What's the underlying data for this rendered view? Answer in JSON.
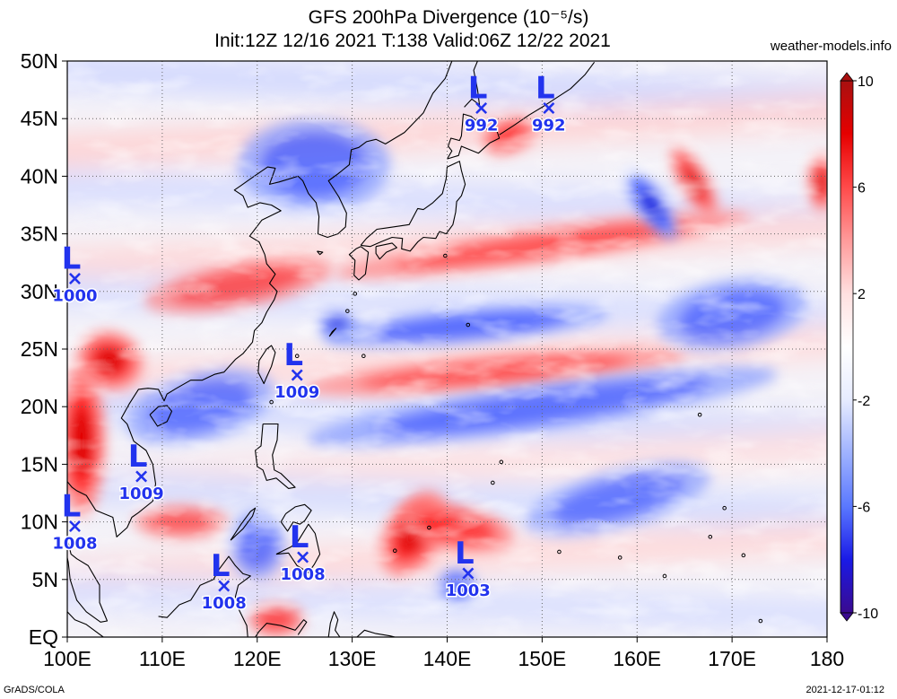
{
  "header": {
    "title_line1": "GFS 200hPa Divergence (10⁻⁵/s)",
    "title_line2": "Init:12Z 12/16 2021 T:138 Valid:06Z 12/22 2021",
    "brand": "weather-models.info"
  },
  "footer": {
    "left": "GrADS/COLA",
    "right": "2021-12-17-01:12"
  },
  "map": {
    "lon_range": [
      100,
      180
    ],
    "lat_range": [
      0,
      50
    ],
    "lon_ticks": [
      {
        "value": 100,
        "label": "100E"
      },
      {
        "value": 110,
        "label": "110E"
      },
      {
        "value": 120,
        "label": "120E"
      },
      {
        "value": 130,
        "label": "130E"
      },
      {
        "value": 140,
        "label": "140E"
      },
      {
        "value": 150,
        "label": "150E"
      },
      {
        "value": 160,
        "label": "160E"
      },
      {
        "value": 170,
        "label": "170E"
      },
      {
        "value": 180,
        "label": "180"
      }
    ],
    "lat_ticks": [
      {
        "value": 0,
        "label": "EQ"
      },
      {
        "value": 5,
        "label": "5N"
      },
      {
        "value": 10,
        "label": "10N"
      },
      {
        "value": 15,
        "label": "15N"
      },
      {
        "value": 20,
        "label": "20N"
      },
      {
        "value": 25,
        "label": "25N"
      },
      {
        "value": 30,
        "label": "30N"
      },
      {
        "value": 35,
        "label": "35N"
      },
      {
        "value": 40,
        "label": "40N"
      },
      {
        "value": 45,
        "label": "45N"
      },
      {
        "value": 50,
        "label": "50N"
      }
    ],
    "grid": true
  },
  "colorbar": {
    "range": [
      -10,
      10
    ],
    "ticks": [
      {
        "value": 10,
        "label": "10"
      },
      {
        "value": 6,
        "label": "6"
      },
      {
        "value": 2,
        "label": "2"
      },
      {
        "value": -2,
        "label": "-2"
      },
      {
        "value": -6,
        "label": "-6"
      },
      {
        "value": -10,
        "label": "-10"
      }
    ],
    "colors": [
      "#3a0a8f",
      "#1a1ae6",
      "#5a78ff",
      "#9fb2ff",
      "#e6ebff",
      "#ffffff",
      "#ffe0e0",
      "#ff9a9a",
      "#ff4a4a",
      "#e60000",
      "#a81010"
    ]
  },
  "lows": [
    {
      "symbol": "L",
      "pressure": "992",
      "lon": 143.6,
      "lat": 46.0
    },
    {
      "symbol": "L",
      "pressure": "992",
      "lon": 150.7,
      "lat": 46.0
    },
    {
      "symbol": "L",
      "pressure": "1000",
      "lon": 100.8,
      "lat": 31.2
    },
    {
      "symbol": "L",
      "pressure": "1009",
      "lon": 124.2,
      "lat": 22.8
    },
    {
      "symbol": "L",
      "pressure": "1009",
      "lon": 107.8,
      "lat": 14.0
    },
    {
      "symbol": "L",
      "pressure": "1008",
      "lon": 100.8,
      "lat": 9.7
    },
    {
      "symbol": "L",
      "pressure": "1008",
      "lon": 124.8,
      "lat": 7.0
    },
    {
      "symbol": "L",
      "pressure": "1008",
      "lon": 116.5,
      "lat": 4.5
    },
    {
      "symbol": "L",
      "pressure": "1003",
      "lon": 142.2,
      "lat": 5.6
    }
  ],
  "field_features": [
    {
      "type": "positive",
      "strength": 1.0,
      "lon": 101.5,
      "lat": 17.0,
      "rlon": 2.5,
      "rlat": 6.5,
      "angle": 0
    },
    {
      "type": "positive",
      "strength": 0.9,
      "lon": 104.5,
      "lat": 24.0,
      "rlon": 3.5,
      "rlat": 2.5,
      "angle": -20
    },
    {
      "type": "positive",
      "strength": 0.95,
      "lon": 136.5,
      "lat": 9.0,
      "rlon": 3.0,
      "rlat": 4.0,
      "angle": -30
    },
    {
      "type": "positive",
      "strength": 0.7,
      "lon": 141.0,
      "lat": 9.5,
      "rlon": 6.0,
      "rlat": 2.0,
      "angle": -10
    },
    {
      "type": "positive",
      "strength": 0.8,
      "lon": 166.0,
      "lat": 39.5,
      "rlon": 1.5,
      "rlat": 3.5,
      "angle": 30
    },
    {
      "type": "positive",
      "strength": 0.85,
      "lon": 179.5,
      "lat": 39.5,
      "rlon": 1.5,
      "rlat": 2.5,
      "angle": 0
    },
    {
      "type": "positive",
      "strength": 0.65,
      "lon": 146.5,
      "lat": 43.5,
      "rlon": 3.0,
      "rlat": 1.5,
      "angle": 20
    },
    {
      "type": "positive",
      "strength": 0.6,
      "lon": 122.0,
      "lat": 1.5,
      "rlon": 3.0,
      "rlat": 1.5,
      "angle": 0
    },
    {
      "type": "positive",
      "strength": 0.45,
      "lon": 145.0,
      "lat": 23.0,
      "rlon": 20.0,
      "rlat": 1.5,
      "angle": 5
    },
    {
      "type": "positive",
      "strength": 0.45,
      "lon": 150.0,
      "lat": 34.0,
      "rlon": 22.0,
      "rlat": 1.5,
      "angle": 8
    },
    {
      "type": "positive",
      "strength": 0.45,
      "lon": 118.0,
      "lat": 30.5,
      "rlon": 10.0,
      "rlat": 2.0,
      "angle": 10
    },
    {
      "type": "positive",
      "strength": 0.4,
      "lon": 112.0,
      "lat": 10.0,
      "rlon": 5.0,
      "rlat": 1.5,
      "angle": 0
    },
    {
      "type": "negative",
      "strength": 1.0,
      "lon": 161.5,
      "lat": 37.5,
      "rlon": 1.5,
      "rlat": 3.5,
      "angle": 35
    },
    {
      "type": "negative",
      "strength": 0.8,
      "lon": 128.5,
      "lat": 27.0,
      "rlon": 2.0,
      "rlat": 1.2,
      "angle": 0
    },
    {
      "type": "negative",
      "strength": 0.6,
      "lon": 142.0,
      "lat": 27.0,
      "rlon": 15.0,
      "rlat": 1.5,
      "angle": 5
    },
    {
      "type": "negative",
      "strength": 0.5,
      "lon": 150.0,
      "lat": 20.0,
      "rlon": 25.0,
      "rlat": 2.0,
      "angle": 8
    },
    {
      "type": "negative",
      "strength": 0.5,
      "lon": 126.0,
      "lat": 41.0,
      "rlon": 8.0,
      "rlat": 4.0,
      "angle": 0
    },
    {
      "type": "negative",
      "strength": 0.55,
      "lon": 141.0,
      "lat": 4.5,
      "rlon": 2.0,
      "rlat": 1.5,
      "angle": 0
    },
    {
      "type": "negative",
      "strength": 0.45,
      "lon": 170.0,
      "lat": 28.0,
      "rlon": 8.0,
      "rlat": 3.0,
      "angle": 10
    },
    {
      "type": "negative",
      "strength": 0.4,
      "lon": 114.0,
      "lat": 20.0,
      "rlon": 8.0,
      "rlat": 3.0,
      "angle": 15
    },
    {
      "type": "negative",
      "strength": 0.45,
      "lon": 120.0,
      "lat": 8.0,
      "rlon": 3.0,
      "rlat": 3.0,
      "angle": 0
    },
    {
      "type": "negative",
      "strength": 0.4,
      "lon": 158.0,
      "lat": 12.0,
      "rlon": 10.0,
      "rlat": 2.5,
      "angle": 15
    }
  ],
  "coast_color": "#000000"
}
